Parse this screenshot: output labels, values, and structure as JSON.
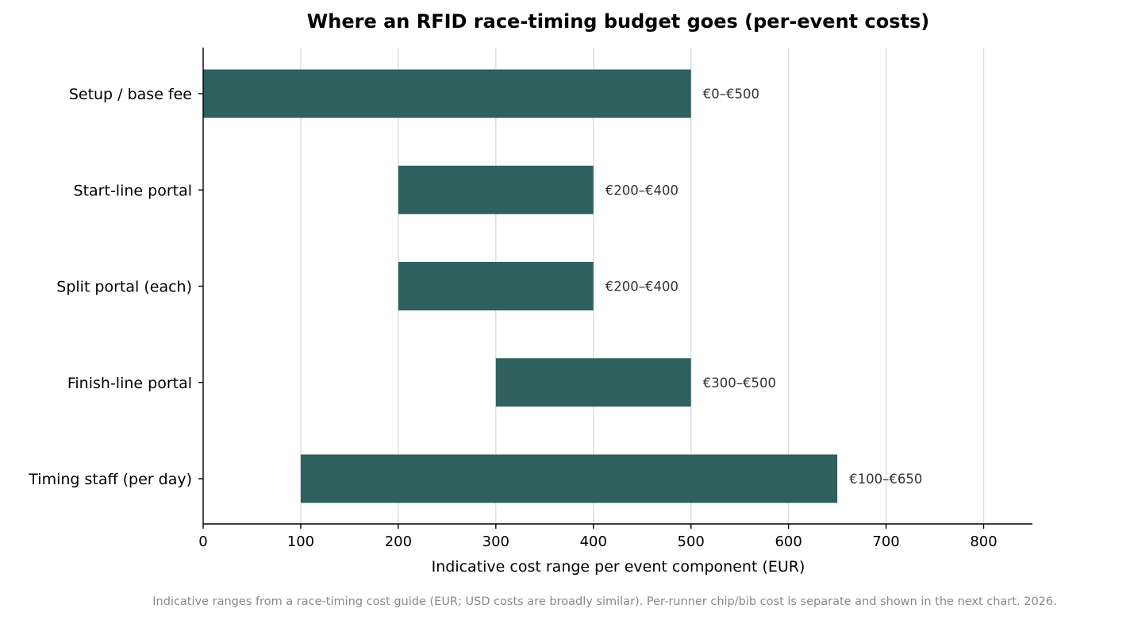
{
  "chart_data": {
    "type": "bar",
    "orientation": "horizontal",
    "title": "Where an RFID race-timing budget goes (per-event costs)",
    "xlabel": "Indicative cost range per event component (EUR)",
    "ylabel": "",
    "xlim": [
      0,
      850
    ],
    "xticks": [
      0,
      100,
      200,
      300,
      400,
      500,
      600,
      700,
      800
    ],
    "grid": "vertical",
    "categories": [
      "Setup / base fee",
      "Start-line portal",
      "Split portal (each)",
      "Finish-line portal",
      "Timing staff (per day)"
    ],
    "ranges": [
      {
        "low": 0,
        "high": 500,
        "label": "€0–€500"
      },
      {
        "low": 200,
        "high": 400,
        "label": "€200–€400"
      },
      {
        "low": 200,
        "high": 400,
        "label": "€200–€400"
      },
      {
        "low": 300,
        "high": 500,
        "label": "€300–€500"
      },
      {
        "low": 100,
        "high": 650,
        "label": "€100–€650"
      }
    ],
    "bar_color": "#2e605d",
    "footnote": "Indicative ranges from a race-timing cost guide (EUR; USD costs are broadly similar). Per-runner chip/bib cost is separate and shown in the next chart. 2026."
  }
}
